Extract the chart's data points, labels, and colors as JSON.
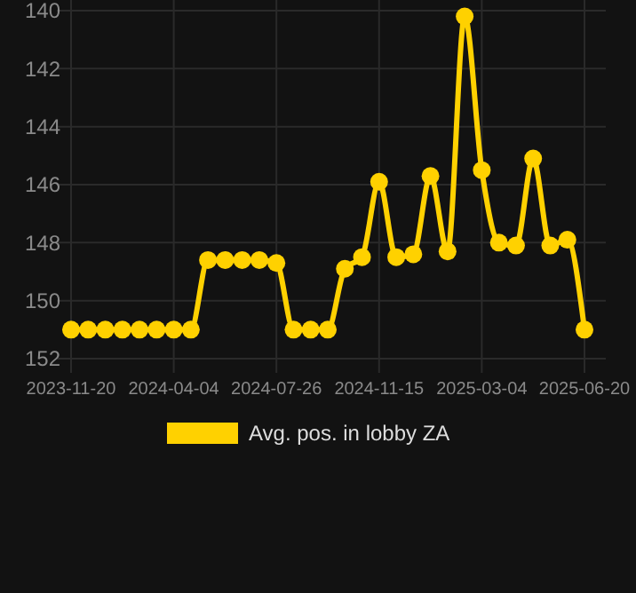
{
  "chart_data": {
    "type": "line",
    "categories": [
      "2023-11-20",
      null,
      null,
      null,
      null,
      null,
      "2024-04-04",
      null,
      null,
      null,
      null,
      null,
      "2024-07-26",
      null,
      null,
      null,
      null,
      null,
      "2024-11-15",
      null,
      null,
      null,
      null,
      null,
      "2025-03-04",
      null,
      null,
      null,
      null,
      null,
      "2025-06-20"
    ],
    "series": [
      {
        "name": "Avg. pos. in lobby ZA",
        "color": "#ffd100",
        "values": [
          151,
          151,
          151,
          151,
          151,
          151,
          151,
          151,
          148.6,
          148.6,
          148.6,
          148.6,
          148.7,
          151,
          151,
          151,
          148.9,
          148.5,
          145.9,
          148.5,
          148.4,
          145.7,
          148.3,
          140.2,
          145.5,
          148,
          148.1,
          145.1,
          148.1,
          147.9,
          151
        ]
      }
    ],
    "ylim": [
      152,
      140
    ],
    "yticks": [
      140,
      142,
      144,
      146,
      148,
      150,
      152
    ],
    "grid": true,
    "legend": "bottom",
    "marker": "circle",
    "line_style": "solid"
  }
}
